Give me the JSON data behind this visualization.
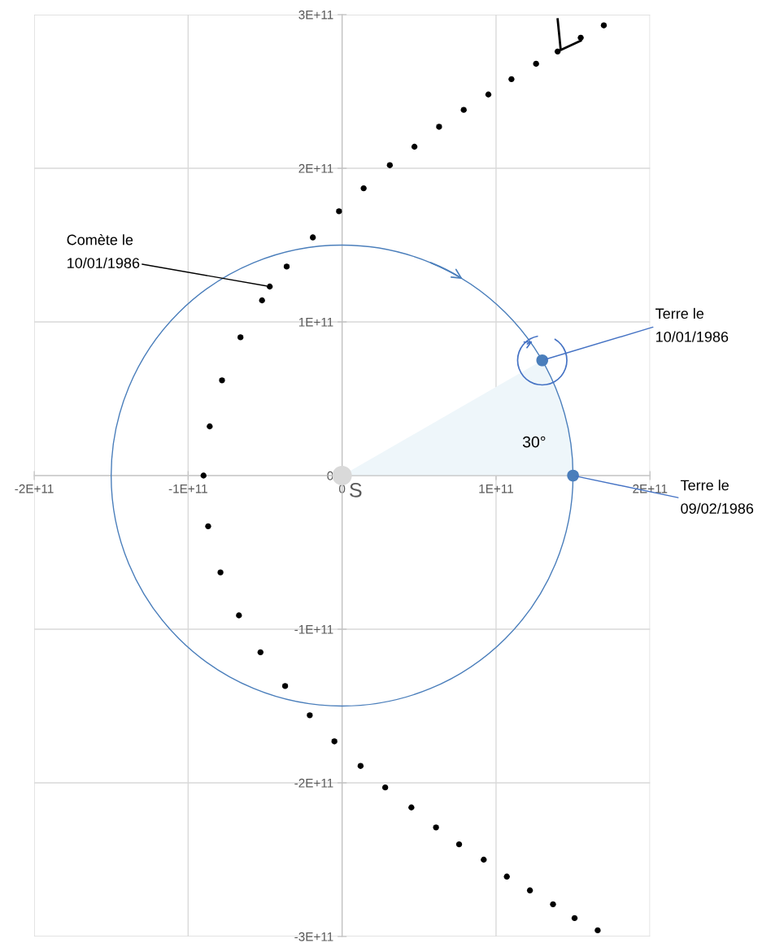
{
  "chart_data": {
    "type": "scatter",
    "xlim": [
      -200000000000.0,
      200000000000.0
    ],
    "ylim": [
      -300000000000.0,
      300000000000.0
    ],
    "xticks": [
      {
        "value": -200000000000.0,
        "label": "-2E+11"
      },
      {
        "value": -100000000000.0,
        "label": "-1E+11"
      },
      0,
      {
        "value": 100000000000.0,
        "label": "1E+11"
      },
      {
        "value": 200000000000.0,
        "label": "2E+11"
      }
    ],
    "yticks": [
      {
        "value": -300000000000.0,
        "label": "-3E+11"
      },
      {
        "value": -200000000000.0,
        "label": "-2E+11"
      },
      {
        "value": -100000000000.0,
        "label": "-1E+11"
      },
      0,
      {
        "value": 100000000000.0,
        "label": "1E+11"
      },
      {
        "value": 200000000000.0,
        "label": "2E+11"
      },
      {
        "value": 300000000000.0,
        "label": "3E+11"
      }
    ],
    "grid": true,
    "legend": false,
    "marker": "circle",
    "series": [
      {
        "type": "area",
        "marker": "none",
        "color": "#eef6fa",
        "x": [
          0,
          130000000000.0,
          138000000000.0,
          145000000000.0,
          149000000000.0,
          150000000000.0
        ],
        "values": [
          0,
          75000000000.0,
          58000000000.0,
          39000000000.0,
          20000000000.0,
          0
        ]
      },
      {
        "color": "#000000",
        "x": [
          170000000000.0,
          155000000000.0,
          140000000000.0,
          126000000000.0,
          110000000000.0,
          95000000000.0,
          79000000000.0,
          63000000000.0,
          47000000000.0,
          31000000000.0,
          14000000000.0,
          -2000000000.0,
          -19000000000.0,
          -36000000000.0,
          -47000000000.0,
          -52000000000.0,
          -66000000000.0,
          -78000000000.0,
          -86000000000.0,
          -90000000000.0,
          -87000000000.0,
          -79000000000.0,
          -67000000000.0,
          -53000000000.0,
          -37000000000.0,
          -21000000000.0,
          -5000000000.0,
          12000000000.0,
          28000000000.0,
          45000000000.0,
          61000000000.0,
          76000000000.0,
          92000000000.0,
          107000000000.0,
          122000000000.0,
          137000000000.0,
          151000000000.0,
          166000000000.0
        ],
        "values": [
          293000000000.0,
          285000000000.0,
          276000000000.0,
          268000000000.0,
          258000000000.0,
          248000000000.0,
          238000000000.0,
          227000000000.0,
          214000000000.0,
          202000000000.0,
          187000000000.0,
          172000000000.0,
          155000000000.0,
          136000000000.0,
          123000000000.0,
          114000000000.0,
          90000000000.0,
          62000000000.0,
          32000000000.0,
          0,
          -33000000000.0,
          -63000000000.0,
          -91000000000.0,
          -115000000000.0,
          -137000000000.0,
          -156000000000.0,
          -173000000000.0,
          -189000000000.0,
          -203000000000.0,
          -216000000000.0,
          -229000000000.0,
          -240000000000.0,
          -250000000000.0,
          -261000000000.0,
          -270000000000.0,
          -279000000000.0,
          -288000000000.0,
          -296000000000.0
        ]
      },
      {
        "color": "#d9d9d9",
        "x": [
          0
        ],
        "values": [
          0
        ]
      },
      {
        "color": "#4a7ebb",
        "x": [
          130000000000.0,
          150000000000.0
        ],
        "values": [
          75000000000.0,
          0
        ]
      }
    ],
    "annotations": [
      {
        "text": "Comète le\n10/01/1986",
        "x": -47000000000.0,
        "y": 123000000000.0
      },
      {
        "text": "Terre le\n10/01/1986",
        "x": 130000000000.0,
        "y": 75000000000.0
      },
      {
        "text": "Terre le\n09/02/1986",
        "x": 150000000000.0,
        "y": 0
      },
      "30°",
      {
        "text": "S",
        "x": 0,
        "y": 0
      }
    ]
  }
}
